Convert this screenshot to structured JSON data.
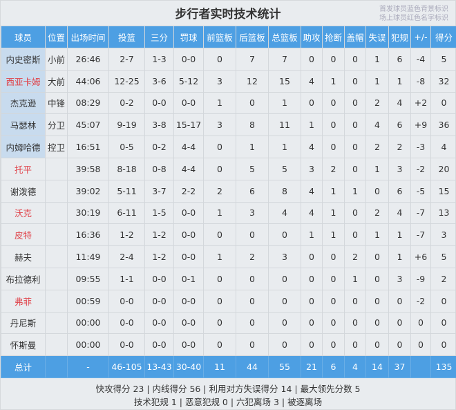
{
  "title": "步行者实时技术统计",
  "legend_notes": [
    "首发球员蓝色背景标识",
    "场上球员红色名字标识"
  ],
  "colors": {
    "header": "#4d9fe3",
    "starter_bg": "#c8dbee",
    "on_court_name": "#e0434a"
  },
  "columns": [
    "球员",
    "位置",
    "出场时间",
    "投篮",
    "三分",
    "罚球",
    "前篮板",
    "后篮板",
    "总篮板",
    "助攻",
    "抢断",
    "盖帽",
    "失误",
    "犯规",
    "+/-",
    "得分"
  ],
  "players": [
    {
      "starter": true,
      "on_court": false,
      "cells": [
        "内史密斯",
        "小前",
        "26:46",
        "2-7",
        "1-3",
        "0-0",
        "0",
        "7",
        "7",
        "0",
        "0",
        "0",
        "1",
        "6",
        "-4",
        "5"
      ]
    },
    {
      "starter": true,
      "on_court": true,
      "cells": [
        "西亚卡姆",
        "大前",
        "44:06",
        "12-25",
        "3-6",
        "5-12",
        "3",
        "12",
        "15",
        "4",
        "1",
        "0",
        "1",
        "1",
        "-8",
        "32"
      ]
    },
    {
      "starter": true,
      "on_court": false,
      "cells": [
        "杰克逊",
        "中锋",
        "08:29",
        "0-2",
        "0-0",
        "0-0",
        "1",
        "0",
        "1",
        "0",
        "0",
        "0",
        "2",
        "4",
        "+2",
        "0"
      ]
    },
    {
      "starter": true,
      "on_court": false,
      "cells": [
        "马瑟林",
        "分卫",
        "45:07",
        "9-19",
        "3-8",
        "15-17",
        "3",
        "8",
        "11",
        "1",
        "0",
        "0",
        "4",
        "6",
        "+9",
        "36"
      ]
    },
    {
      "starter": true,
      "on_court": false,
      "cells": [
        "内姆哈德",
        "控卫",
        "16:51",
        "0-5",
        "0-2",
        "4-4",
        "0",
        "1",
        "1",
        "4",
        "0",
        "0",
        "2",
        "2",
        "-3",
        "4"
      ]
    },
    {
      "starter": false,
      "on_court": true,
      "cells": [
        "托平",
        "",
        "39:58",
        "8-18",
        "0-8",
        "4-4",
        "0",
        "5",
        "5",
        "3",
        "2",
        "0",
        "1",
        "3",
        "-2",
        "20"
      ]
    },
    {
      "starter": false,
      "on_court": false,
      "cells": [
        "谢泼德",
        "",
        "39:02",
        "5-11",
        "3-7",
        "2-2",
        "2",
        "6",
        "8",
        "4",
        "1",
        "1",
        "0",
        "6",
        "-5",
        "15"
      ]
    },
    {
      "starter": false,
      "on_court": true,
      "cells": [
        "沃克",
        "",
        "30:19",
        "6-11",
        "1-5",
        "0-0",
        "1",
        "3",
        "4",
        "4",
        "1",
        "0",
        "2",
        "4",
        "-7",
        "13"
      ]
    },
    {
      "starter": false,
      "on_court": true,
      "cells": [
        "皮特",
        "",
        "16:36",
        "1-2",
        "1-2",
        "0-0",
        "0",
        "0",
        "0",
        "1",
        "1",
        "0",
        "1",
        "1",
        "-7",
        "3"
      ]
    },
    {
      "starter": false,
      "on_court": false,
      "cells": [
        "赫夫",
        "",
        "11:49",
        "2-4",
        "1-2",
        "0-0",
        "1",
        "2",
        "3",
        "0",
        "0",
        "2",
        "0",
        "1",
        "+6",
        "5"
      ]
    },
    {
      "starter": false,
      "on_court": false,
      "cells": [
        "布拉德利",
        "",
        "09:55",
        "1-1",
        "0-0",
        "0-1",
        "0",
        "0",
        "0",
        "0",
        "0",
        "1",
        "0",
        "3",
        "-9",
        "2"
      ]
    },
    {
      "starter": false,
      "on_court": true,
      "cells": [
        "弗菲",
        "",
        "00:59",
        "0-0",
        "0-0",
        "0-0",
        "0",
        "0",
        "0",
        "0",
        "0",
        "0",
        "0",
        "0",
        "-2",
        "0"
      ]
    },
    {
      "starter": false,
      "on_court": false,
      "cells": [
        "丹尼斯",
        "",
        "00:00",
        "0-0",
        "0-0",
        "0-0",
        "0",
        "0",
        "0",
        "0",
        "0",
        "0",
        "0",
        "0",
        "0",
        "0"
      ]
    },
    {
      "starter": false,
      "on_court": false,
      "cells": [
        "怀斯曼",
        "",
        "00:00",
        "0-0",
        "0-0",
        "0-0",
        "0",
        "0",
        "0",
        "0",
        "0",
        "0",
        "0",
        "0",
        "0",
        "0"
      ]
    }
  ],
  "total": [
    "总计",
    "",
    "-",
    "46-105",
    "13-43",
    "30-40",
    "11",
    "44",
    "55",
    "21",
    "6",
    "4",
    "14",
    "37",
    "",
    "135"
  ],
  "footer": [
    "快攻得分 23 | 内线得分 56 | 利用对方失误得分 14 | 最大领先分数 5",
    "技术犯规 1 | 恶意犯规 0 | 六犯离场 3 | 被逐离场"
  ]
}
